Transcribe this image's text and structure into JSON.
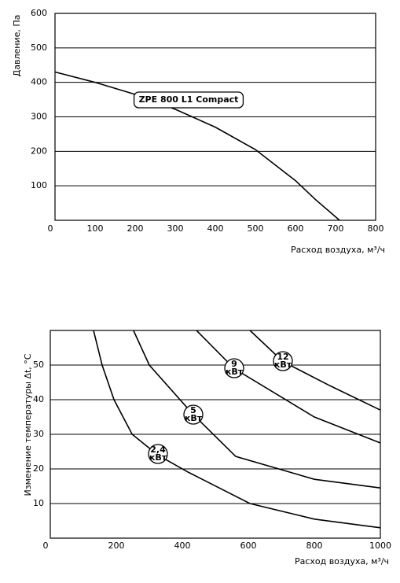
{
  "chart_data": [
    {
      "type": "line",
      "ylabel": "Давление, Па",
      "xlabel": "Расход воздуха, м³/ч",
      "xlim": [
        0,
        800
      ],
      "ylim": [
        0,
        600
      ],
      "xticks": [
        0,
        100,
        200,
        300,
        400,
        500,
        600,
        700,
        800
      ],
      "yticks": [
        100,
        200,
        300,
        400,
        500,
        600
      ],
      "grid": true,
      "series": [
        {
          "name": "ZPE 800 L1 Compact",
          "color": "#000000",
          "x": [
            0,
            100,
            200,
            300,
            400,
            500,
            600,
            650,
            710
          ],
          "values": [
            430,
            400,
            365,
            322,
            270,
            205,
            115,
            60,
            0
          ]
        }
      ]
    },
    {
      "type": "line",
      "ylabel": "Изменение температуры Δt, °C",
      "xlabel": "Расход воздуха, м³/ч",
      "xlim": [
        0,
        1000
      ],
      "ylim": [
        0,
        60
      ],
      "xticks": [
        0,
        200,
        400,
        600,
        800,
        1000
      ],
      "yticks": [
        10,
        20,
        30,
        40,
        50
      ],
      "grid": true,
      "series_unit": "кВт",
      "series": [
        {
          "name": "2,4",
          "color": "#000000",
          "x": [
            131,
            157,
            193,
            248,
            326,
            419,
            605,
            800,
            1000
          ],
          "values": [
            60,
            50,
            40,
            30,
            24,
            19,
            10,
            5.5,
            3
          ]
        },
        {
          "name": "5",
          "color": "#000000",
          "x": [
            252,
            300,
            433,
            562,
            800,
            1000
          ],
          "values": [
            60,
            50,
            35.7,
            23.6,
            17,
            14.5
          ]
        },
        {
          "name": "9",
          "color": "#000000",
          "x": [
            443,
            557,
            800,
            1000
          ],
          "values": [
            60,
            49,
            35,
            27.5
          ]
        },
        {
          "name": "12",
          "color": "#000000",
          "x": [
            605,
            705,
            848,
            1000
          ],
          "values": [
            60,
            51,
            44,
            37
          ]
        }
      ]
    }
  ]
}
